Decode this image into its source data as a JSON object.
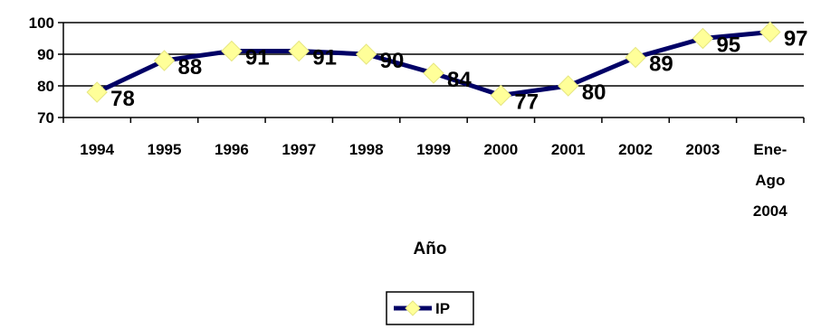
{
  "chart_data": {
    "type": "line",
    "categories": [
      [
        "1994"
      ],
      [
        "1995"
      ],
      [
        "1996"
      ],
      [
        "1997"
      ],
      [
        "1998"
      ],
      [
        "1999"
      ],
      [
        "2000"
      ],
      [
        "2001"
      ],
      [
        "2002"
      ],
      [
        "2003"
      ],
      [
        "Ene-",
        "Ago",
        "2004"
      ]
    ],
    "series": [
      {
        "name": "IP",
        "values": [
          78,
          88,
          91,
          91,
          90,
          84,
          77,
          80,
          89,
          95,
          97
        ],
        "line_color": "#000066",
        "marker_color": "#ffff99",
        "marker": "diamond"
      }
    ],
    "data_labels": [
      "78",
      "88",
      "91",
      "91",
      "90",
      "84",
      "77",
      "80",
      "89",
      "95",
      "97"
    ],
    "xlabel": "Año",
    "ylabel": "",
    "ylim": [
      70,
      100
    ],
    "yticks": [
      70,
      80,
      90,
      100
    ],
    "grid": "horizontal",
    "legend": "bottom"
  }
}
